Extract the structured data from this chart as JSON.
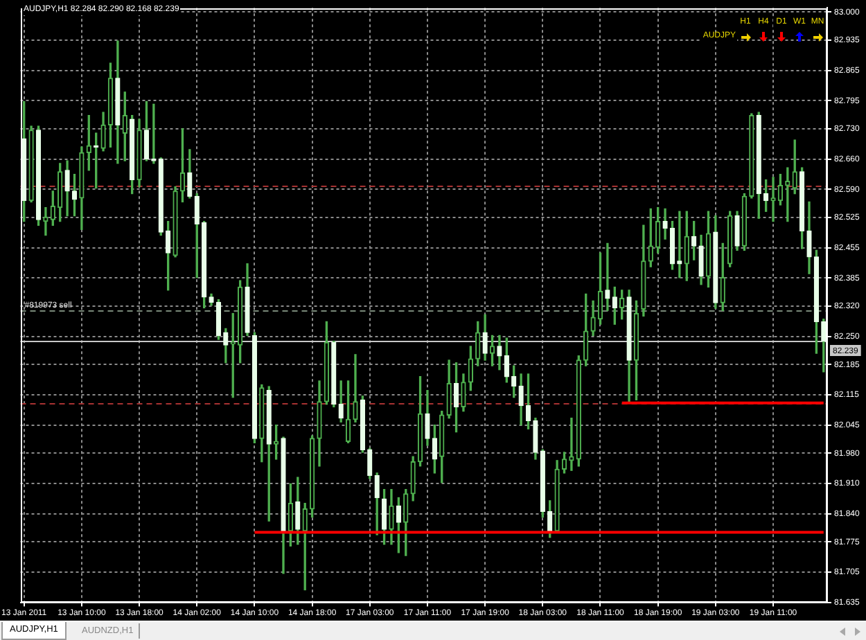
{
  "chart_data": {
    "type": "candlestick",
    "categories": [
      "13 Jan 2011",
      null,
      null,
      null,
      null,
      null,
      null,
      null,
      "13 Jan 10:00",
      null,
      null,
      null,
      null,
      null,
      null,
      null,
      "13 Jan 18:00",
      null,
      null,
      null,
      null,
      null,
      null,
      null,
      "14 Jan 02:00",
      null,
      null,
      null,
      null,
      null,
      null,
      null,
      "14 Jan 10:00",
      null,
      null,
      null,
      null,
      null,
      null,
      null,
      "14 Jan 18:00",
      null,
      null,
      null,
      null,
      null,
      null,
      null,
      "17 Jan 03:00",
      null,
      null,
      null,
      null,
      null,
      null,
      null,
      "17 Jan 11:00",
      null,
      null,
      null,
      null,
      null,
      null,
      null,
      "17 Jan 19:00",
      null,
      null,
      null,
      null,
      null,
      null,
      null,
      "18 Jan 03:00",
      null,
      null,
      null,
      null,
      null,
      null,
      null,
      "18 Jan 11:00",
      null,
      null,
      null,
      null,
      null,
      null,
      null,
      "18 Jan 19:00",
      null,
      null,
      null,
      null,
      null,
      null,
      null,
      "19 Jan 03:00",
      null,
      null,
      null,
      null,
      null,
      null,
      null,
      "19 Jan 11:00",
      null,
      null,
      null,
      null,
      null,
      null,
      null
    ],
    "ohlc": [
      [
        82.707,
        82.793,
        82.516,
        82.564
      ],
      [
        82.564,
        82.736,
        82.561,
        82.727
      ],
      [
        82.727,
        82.736,
        82.507,
        82.52
      ],
      [
        82.516,
        82.548,
        82.484,
        82.526
      ],
      [
        82.52,
        82.586,
        82.507,
        82.551
      ],
      [
        82.548,
        82.65,
        82.516,
        82.631
      ],
      [
        82.634,
        82.656,
        82.529,
        82.586
      ],
      [
        82.586,
        82.625,
        82.529,
        82.567
      ],
      [
        82.57,
        82.688,
        82.497,
        82.675
      ],
      [
        82.675,
        82.761,
        82.634,
        82.691
      ],
      [
        82.691,
        82.72,
        82.593,
        82.688
      ],
      [
        82.685,
        82.768,
        82.679,
        82.739
      ],
      [
        82.739,
        82.882,
        82.688,
        82.847
      ],
      [
        82.847,
        82.933,
        82.65,
        82.739
      ],
      [
        82.72,
        82.815,
        82.656,
        82.761
      ],
      [
        82.752,
        82.761,
        82.58,
        82.612
      ],
      [
        82.612,
        82.752,
        82.596,
        82.727
      ],
      [
        82.727,
        82.793,
        82.656,
        82.66
      ],
      [
        82.66,
        82.787,
        82.65,
        82.656
      ],
      [
        82.66,
        82.663,
        82.484,
        82.491
      ],
      [
        82.494,
        82.516,
        82.357,
        82.443
      ],
      [
        82.437,
        82.596,
        82.434,
        82.586
      ],
      [
        82.586,
        82.73,
        82.561,
        82.628
      ],
      [
        82.628,
        82.682,
        82.57,
        82.574
      ],
      [
        82.574,
        82.58,
        82.386,
        82.51
      ],
      [
        82.513,
        82.516,
        82.316,
        82.341
      ],
      [
        82.341,
        82.348,
        82.322,
        82.329
      ],
      [
        82.329,
        82.335,
        82.243,
        82.252
      ],
      [
        82.259,
        82.268,
        82.189,
        82.23
      ],
      [
        82.233,
        82.303,
        82.109,
        82.236
      ],
      [
        82.23,
        82.379,
        82.189,
        82.364
      ],
      [
        82.364,
        82.418,
        82.252,
        82.259
      ],
      [
        82.252,
        82.259,
        82.004,
        82.014
      ],
      [
        82.014,
        82.138,
        81.96,
        82.131
      ],
      [
        82.125,
        82.134,
        81.823,
        82.001
      ],
      [
        82.001,
        82.045,
        81.966,
        82.007
      ],
      [
        82.014,
        82.017,
        81.702,
        81.8
      ],
      [
        81.8,
        81.909,
        81.765,
        81.864
      ],
      [
        81.867,
        81.924,
        81.769,
        81.804
      ],
      [
        81.8,
        81.864,
        81.664,
        81.851
      ],
      [
        81.851,
        82.02,
        81.832,
        82.014
      ],
      [
        82.014,
        82.147,
        81.95,
        82.099
      ],
      [
        82.099,
        82.284,
        82.093,
        82.236
      ],
      [
        82.236,
        82.239,
        82.087,
        82.093
      ],
      [
        82.093,
        82.147,
        82.052,
        82.061
      ],
      [
        82.007,
        82.147,
        82.004,
        82.058
      ],
      [
        82.058,
        82.208,
        82.052,
        82.099
      ],
      [
        82.103,
        82.112,
        81.982,
        81.988
      ],
      [
        81.988,
        81.991,
        81.921,
        81.928
      ],
      [
        81.928,
        81.934,
        81.791,
        81.877
      ],
      [
        81.874,
        81.896,
        81.769,
        81.804
      ],
      [
        81.804,
        81.896,
        81.769,
        81.858
      ],
      [
        81.858,
        81.877,
        81.75,
        81.82
      ],
      [
        81.82,
        81.896,
        81.743,
        81.886
      ],
      [
        81.886,
        81.972,
        81.87,
        81.96
      ],
      [
        81.96,
        82.157,
        81.95,
        82.071
      ],
      [
        82.071,
        82.125,
        81.998,
        82.014
      ],
      [
        82.014,
        82.045,
        81.934,
        81.966
      ],
      [
        81.972,
        82.077,
        81.912,
        82.068
      ],
      [
        82.068,
        82.195,
        82.061,
        82.141
      ],
      [
        82.141,
        82.189,
        82.029,
        82.087
      ],
      [
        82.087,
        82.163,
        82.077,
        82.144
      ],
      [
        82.144,
        82.227,
        82.125,
        82.198
      ],
      [
        82.198,
        82.284,
        82.182,
        82.259
      ],
      [
        82.259,
        82.3,
        82.195,
        82.211
      ],
      [
        82.211,
        82.252,
        82.182,
        82.227
      ],
      [
        82.227,
        82.252,
        82.173,
        82.205
      ],
      [
        82.205,
        82.246,
        82.144,
        82.157
      ],
      [
        82.157,
        82.182,
        82.109,
        82.135
      ],
      [
        82.135,
        82.163,
        82.045,
        82.09
      ],
      [
        82.09,
        82.163,
        82.036,
        82.055
      ],
      [
        82.055,
        82.061,
        81.966,
        81.982
      ],
      [
        81.985,
        81.988,
        81.832,
        81.845
      ],
      [
        81.845,
        81.87,
        81.785,
        81.8
      ],
      [
        81.8,
        81.963,
        81.797,
        81.943
      ],
      [
        81.943,
        81.982,
        81.934,
        81.966
      ],
      [
        81.963,
        82.061,
        81.94,
        81.972
      ],
      [
        81.966,
        82.205,
        81.95,
        82.195
      ],
      [
        82.195,
        82.348,
        82.182,
        82.262
      ],
      [
        82.262,
        82.332,
        82.252,
        82.294
      ],
      [
        82.29,
        82.443,
        82.278,
        82.354
      ],
      [
        82.357,
        82.465,
        82.31,
        82.338
      ],
      [
        82.341,
        82.364,
        82.278,
        82.316
      ],
      [
        82.316,
        82.357,
        82.29,
        82.338
      ],
      [
        82.341,
        82.357,
        82.099,
        82.195
      ],
      [
        82.195,
        82.332,
        82.103,
        82.303
      ],
      [
        82.313,
        82.507,
        82.297,
        82.424
      ],
      [
        82.424,
        82.545,
        82.411,
        82.459
      ],
      [
        82.456,
        82.548,
        82.443,
        82.516
      ],
      [
        82.516,
        82.545,
        82.475,
        82.5
      ],
      [
        82.5,
        82.516,
        82.405,
        82.418
      ],
      [
        82.424,
        82.539,
        82.386,
        82.418
      ],
      [
        82.418,
        82.539,
        82.379,
        82.481
      ],
      [
        82.481,
        82.516,
        82.427,
        82.459
      ],
      [
        82.459,
        82.484,
        82.37,
        82.389
      ],
      [
        82.389,
        82.539,
        82.364,
        82.488
      ],
      [
        82.491,
        82.529,
        82.315,
        82.328
      ],
      [
        82.328,
        82.465,
        82.31,
        82.386
      ],
      [
        82.418,
        82.539,
        82.411,
        82.529
      ],
      [
        82.529,
        82.539,
        82.449,
        82.459
      ],
      [
        82.459,
        82.58,
        82.449,
        82.574
      ],
      [
        82.574,
        82.765,
        82.57,
        82.761
      ],
      [
        82.761,
        82.768,
        82.523,
        82.58
      ],
      [
        82.58,
        82.612,
        82.539,
        82.564
      ],
      [
        82.564,
        82.618,
        82.516,
        82.57
      ],
      [
        82.564,
        82.625,
        82.554,
        82.599
      ],
      [
        82.599,
        82.64,
        82.516,
        82.609
      ],
      [
        82.593,
        82.704,
        82.58,
        82.631
      ],
      [
        82.631,
        82.64,
        82.453,
        82.494
      ],
      [
        82.494,
        82.561,
        82.395,
        82.434
      ],
      [
        82.434,
        82.449,
        82.211,
        82.284
      ],
      [
        82.284,
        82.29,
        82.168,
        82.239
      ]
    ],
    "color": "#4fb04f",
    "colors": [
      "#e8ffe8",
      "#4fb04f",
      "#e8ffe8",
      "#4fb04f",
      "#4fb04f",
      "#4fb04f",
      "#e8ffe8",
      "#e8ffe8",
      "#4fb04f",
      "#4fb04f",
      "#e8ffe8",
      "#4fb04f",
      "#4fb04f",
      "#e8ffe8",
      "#4fb04f",
      "#e8ffe8",
      "#4fb04f",
      "#e8ffe8",
      "#e8ffe8",
      "#e8ffe8",
      "#e8ffe8",
      "#4fb04f",
      "#4fb04f",
      "#e8ffe8",
      "#e8ffe8",
      "#e8ffe8",
      "#e8ffe8",
      "#e8ffe8",
      "#e8ffe8",
      "#4fb04f",
      "#4fb04f",
      "#e8ffe8",
      "#e8ffe8",
      "#4fb04f",
      "#e8ffe8",
      "#4fb04f",
      "#e8ffe8",
      "#4fb04f",
      "#e8ffe8",
      "#4fb04f",
      "#4fb04f",
      "#4fb04f",
      "#4fb04f",
      "#e8ffe8",
      "#e8ffe8",
      "#4fb04f",
      "#4fb04f",
      "#e8ffe8",
      "#e8ffe8",
      "#e8ffe8",
      "#e8ffe8",
      "#4fb04f",
      "#e8ffe8",
      "#4fb04f",
      "#4fb04f",
      "#4fb04f",
      "#e8ffe8",
      "#e8ffe8",
      "#4fb04f",
      "#4fb04f",
      "#e8ffe8",
      "#4fb04f",
      "#4fb04f",
      "#4fb04f",
      "#e8ffe8",
      "#4fb04f",
      "#e8ffe8",
      "#e8ffe8",
      "#e8ffe8",
      "#e8ffe8",
      "#e8ffe8",
      "#e8ffe8",
      "#e8ffe8",
      "#e8ffe8",
      "#4fb04f",
      "#4fb04f",
      "#4fb04f",
      "#4fb04f",
      "#4fb04f",
      "#4fb04f",
      "#4fb04f",
      "#e8ffe8",
      "#e8ffe8",
      "#4fb04f",
      "#e8ffe8",
      "#4fb04f",
      "#4fb04f",
      "#4fb04f",
      "#4fb04f",
      "#e8ffe8",
      "#e8ffe8",
      "#e8ffe8",
      "#4fb04f",
      "#e8ffe8",
      "#e8ffe8",
      "#4fb04f",
      "#e8ffe8",
      "#4fb04f",
      "#4fb04f",
      "#e8ffe8",
      "#4fb04f",
      "#4fb04f",
      "#e8ffe8",
      "#e8ffe8",
      "#4fb04f",
      "#4fb04f",
      "#4fb04f",
      "#4fb04f",
      "#e8ffe8",
      "#e8ffe8",
      "#e8ffe8",
      "#e8ffe8"
    ],
    "series": [
      {
        "type": "line",
        "color": "#ff0000",
        "values": [
          null,
          null,
          null,
          null,
          null,
          null,
          null,
          null,
          null,
          null,
          null,
          null,
          null,
          null,
          null,
          null,
          null,
          null,
          null,
          null,
          null,
          null,
          null,
          null,
          null,
          null,
          null,
          null,
          null,
          null,
          null,
          null,
          81.797,
          81.797,
          81.797,
          81.797,
          81.797,
          81.797,
          81.797,
          81.797,
          81.797,
          81.797,
          81.797,
          81.797,
          81.797,
          81.797,
          81.797,
          81.797,
          81.797,
          81.797,
          81.797,
          81.797,
          81.797,
          81.797,
          81.797,
          81.797,
          81.797,
          81.797,
          81.797,
          81.797,
          81.797,
          81.797,
          81.797,
          81.797,
          81.797,
          81.797,
          81.797,
          81.797,
          81.797,
          81.797,
          81.797,
          81.797,
          81.797,
          81.797,
          81.797,
          81.797,
          81.797,
          81.797,
          81.797,
          81.797,
          81.797,
          81.797,
          81.797,
          81.797,
          81.797,
          81.797,
          81.797,
          81.797,
          81.797,
          81.797,
          81.797,
          81.797,
          81.797,
          81.797,
          81.797,
          81.797,
          81.797,
          81.797,
          81.797,
          81.797,
          81.797,
          81.797,
          81.797,
          81.797,
          81.797,
          81.797,
          81.797,
          81.797,
          81.797,
          81.797,
          81.797,
          81.797
        ]
      },
      {
        "type": "line",
        "color": "#ff0000",
        "values": [
          null,
          null,
          null,
          null,
          null,
          null,
          null,
          null,
          null,
          null,
          null,
          null,
          null,
          null,
          null,
          null,
          null,
          null,
          null,
          null,
          null,
          null,
          null,
          null,
          null,
          null,
          null,
          null,
          null,
          null,
          null,
          null,
          null,
          null,
          null,
          null,
          null,
          null,
          null,
          null,
          null,
          null,
          null,
          null,
          null,
          null,
          null,
          null,
          null,
          null,
          null,
          null,
          null,
          null,
          null,
          null,
          null,
          null,
          null,
          null,
          null,
          null,
          null,
          null,
          null,
          null,
          null,
          null,
          null,
          null,
          null,
          null,
          null,
          null,
          null,
          null,
          null,
          null,
          null,
          null,
          null,
          null,
          null,
          82.096,
          82.096,
          82.096,
          82.096,
          82.096,
          82.096,
          82.096,
          82.096,
          82.096,
          82.096,
          82.096,
          82.096,
          82.096,
          82.096,
          82.096,
          82.096,
          82.096,
          82.096,
          82.096,
          82.096,
          82.096,
          82.096,
          82.096,
          82.096,
          82.096,
          82.096,
          82.096,
          82.096,
          82.096
        ]
      }
    ],
    "ylim": [
      81.635,
      83.01
    ],
    "yticks": [
      {
        "value": 81.635,
        "label": "81.635"
      },
      {
        "value": 81.705,
        "label": "81.705"
      },
      {
        "value": 81.775,
        "label": "81.775"
      },
      {
        "value": 81.84,
        "label": "81.840"
      },
      {
        "value": 81.91,
        "label": "81.910"
      },
      {
        "value": 81.98,
        "label": "81.980"
      },
      {
        "value": 82.045,
        "label": "82.045"
      },
      {
        "value": 82.115,
        "label": "82.115"
      },
      {
        "value": 82.185,
        "label": "82.185"
      },
      {
        "value": 82.25,
        "label": "82.250"
      },
      {
        "value": 82.32,
        "label": "82.320"
      },
      {
        "value": 82.385,
        "label": "82.385"
      },
      {
        "value": 82.455,
        "label": "82.455"
      },
      {
        "value": 82.525,
        "label": "82.525"
      },
      {
        "value": 82.59,
        "label": "82.590"
      },
      {
        "value": 82.66,
        "label": "82.660"
      },
      {
        "value": 82.73,
        "label": "82.730"
      },
      {
        "value": 82.795,
        "label": "82.795"
      },
      {
        "value": 82.865,
        "label": "82.865"
      },
      {
        "value": 82.935,
        "label": "82.935"
      },
      {
        "value": 83.0,
        "label": "83.000"
      }
    ],
    "grid": true,
    "ref_lines": [
      {
        "axis": "y",
        "value": 82.599,
        "color": "#a83232",
        "line_style": "dashed"
      },
      {
        "axis": "y",
        "value": 82.096,
        "color": "#a83232",
        "line_style": "dashed"
      },
      {
        "axis": "y",
        "value": 82.31,
        "label": "#819973 sell",
        "color": "#7a8a7a",
        "line_style": "dashed"
      },
      {
        "axis": "y",
        "value": 82.239,
        "label": "82.239",
        "color": "#c8c8c8"
      }
    ],
    "annotations": [
      "AUDJPY,H1 82.284 82.290 82.168 82.239",
      "H1",
      "H4",
      "D1",
      "W1",
      "MN",
      "AUDJPY",
      "AUDJPY,H1",
      "AUDNZD,H1"
    ]
  }
}
